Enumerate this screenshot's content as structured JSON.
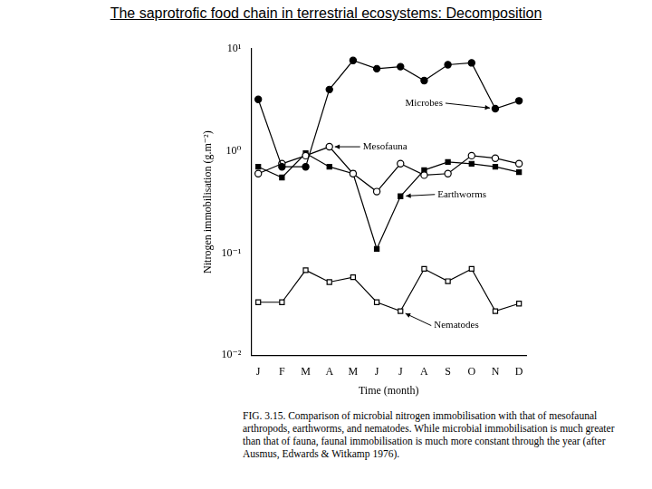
{
  "chart_data": {
    "type": "line",
    "title": "The saprotrofic food chain in terrestrial ecosystems: Decomposition",
    "x_label": "Time (month)",
    "y_label": "Nitrogen immobilisation (g.m⁻²)",
    "caption": "FIG. 3.15. Comparison of microbial nitrogen immobilisation with that of mesofaunal arthropods, earthworms, and nematodes. While microbial immobilisation is much greater than that of fauna, faunal immobilisation is much more constant through the year (after Ausmus, Edwards & Witkamp 1976).",
    "categories": [
      "J",
      "F",
      "M",
      "A",
      "M",
      "J",
      "J",
      "A",
      "S",
      "O",
      "N",
      "D"
    ],
    "log": "y",
    "grid": false,
    "ylim": [
      0.01,
      10
    ],
    "yticks": [
      {
        "value": 0.01,
        "label": "10⁻²"
      },
      {
        "value": 0.1,
        "label": "10⁻¹"
      },
      {
        "value": 1,
        "label": "10⁰"
      },
      {
        "value": 10,
        "label": "10¹"
      }
    ],
    "series": [
      {
        "name": "Microbes",
        "color": "#000000",
        "marker": "filled_circle",
        "values": [
          3.2,
          0.7,
          0.7,
          4.0,
          7.7,
          6.4,
          6.7,
          4.9,
          7.0,
          7.3,
          2.6,
          3.1
        ]
      },
      {
        "name": "Mesofauna",
        "color": "#000000",
        "marker": "open_circle",
        "values": [
          0.6,
          0.75,
          0.9,
          1.1,
          0.6,
          0.4,
          0.75,
          0.58,
          0.6,
          0.9,
          0.85,
          0.75
        ]
      },
      {
        "name": "Earthworms",
        "color": "#000000",
        "marker": "filled_square",
        "values": [
          0.7,
          0.55,
          0.95,
          0.7,
          0.6,
          0.11,
          0.36,
          0.65,
          0.78,
          0.75,
          0.7,
          0.62
        ]
      },
      {
        "name": "Nematodes",
        "color": "#000000",
        "marker": "open_square",
        "values": [
          0.033,
          0.033,
          0.068,
          0.052,
          0.058,
          0.033,
          0.027,
          0.07,
          0.053,
          0.07,
          0.027,
          0.032
        ]
      }
    ]
  }
}
